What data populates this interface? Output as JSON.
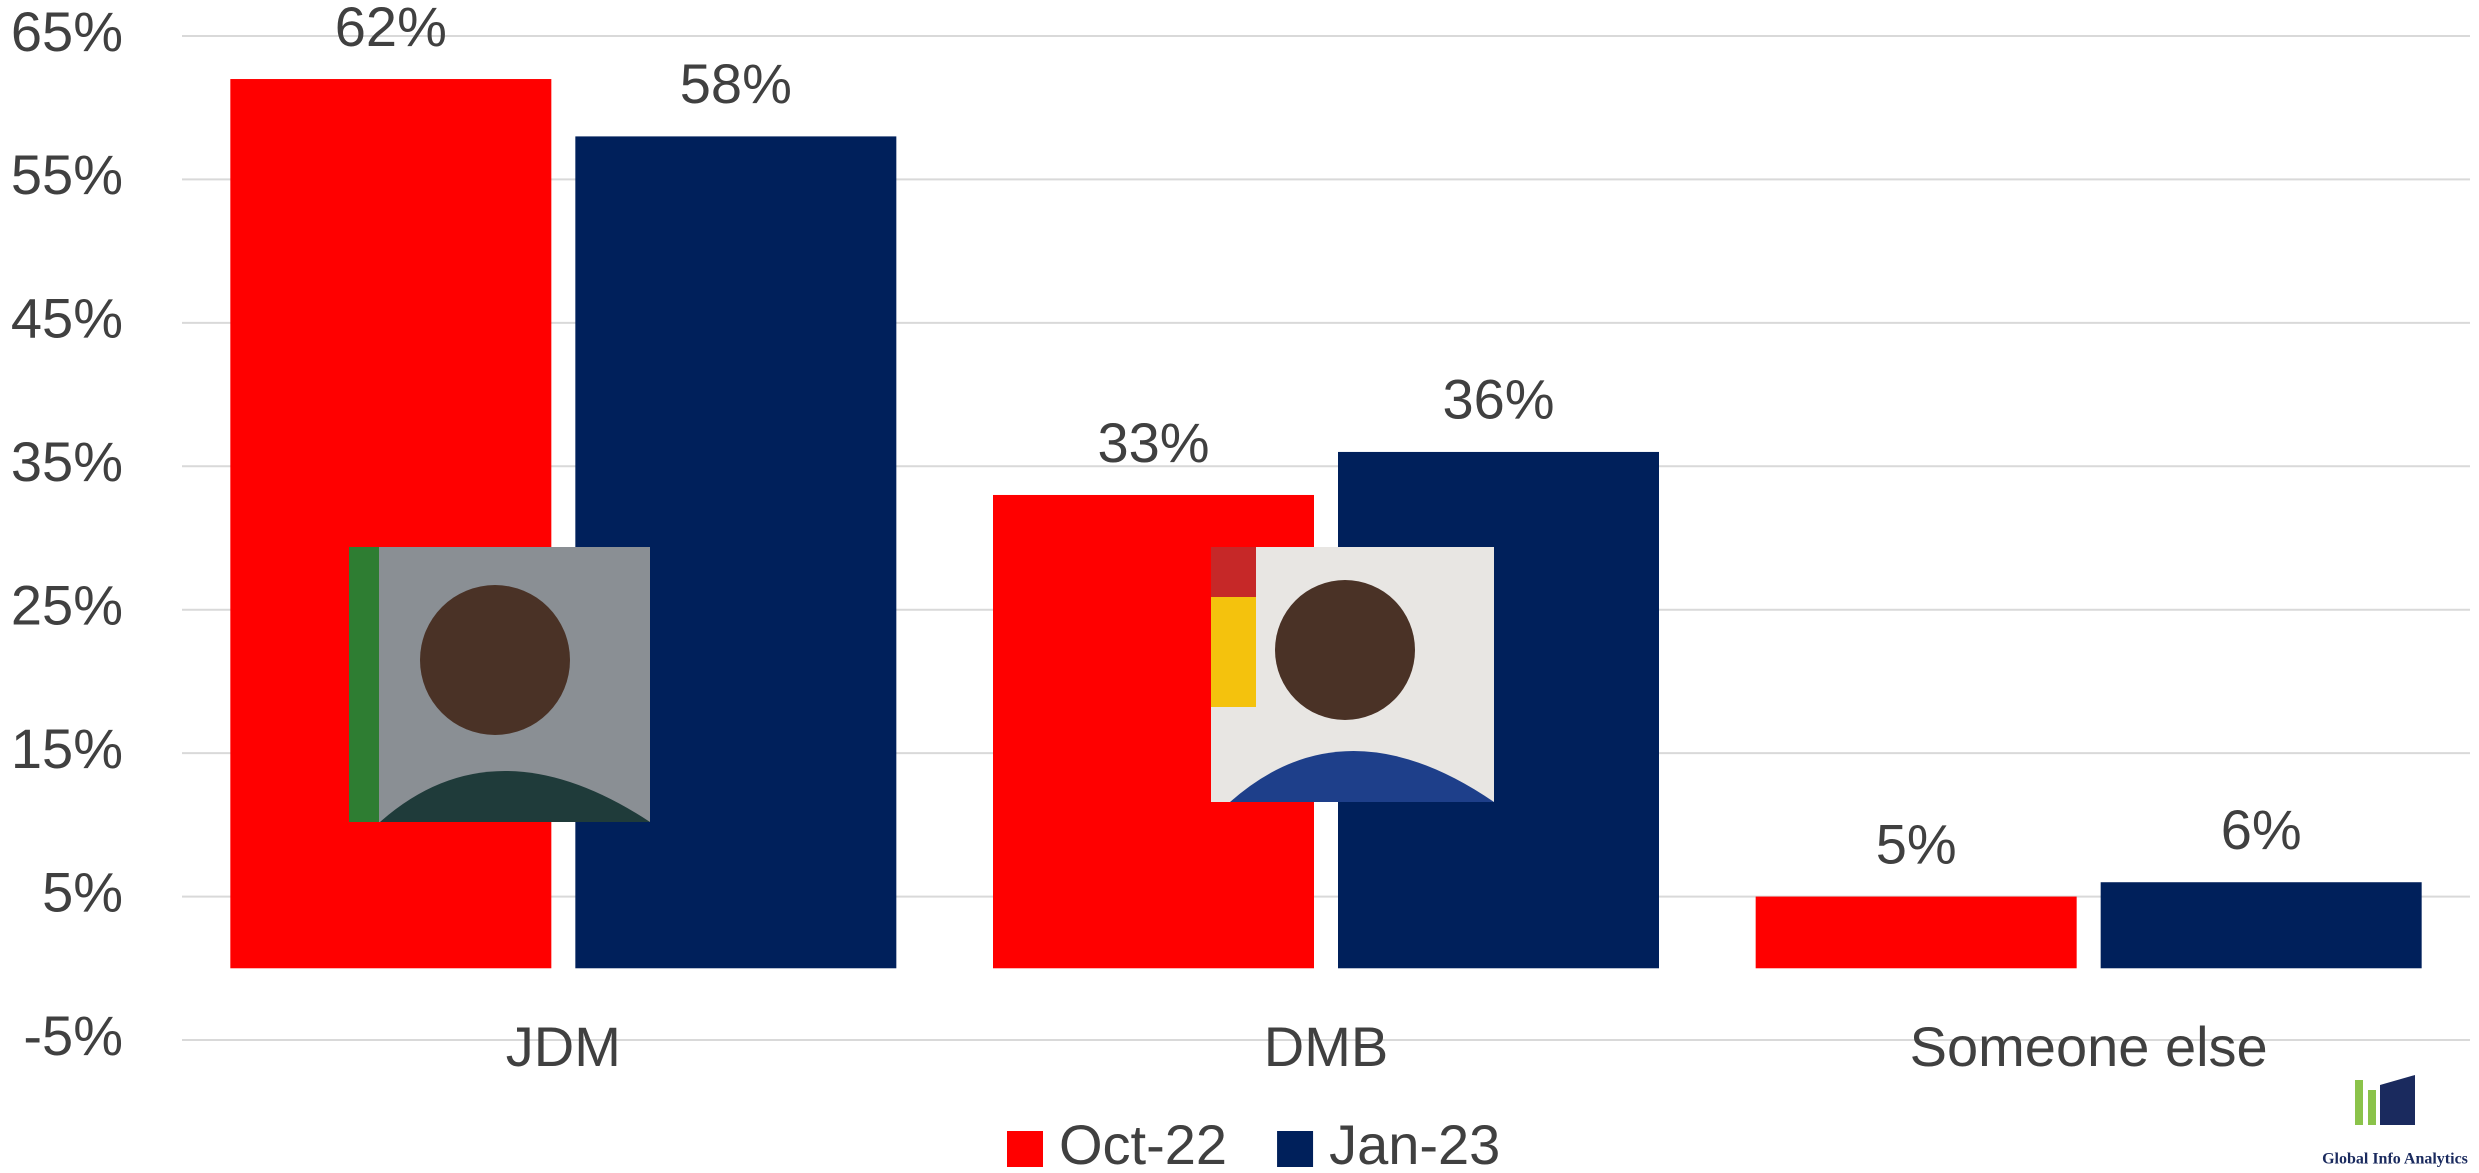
{
  "chart_data": {
    "type": "bar",
    "categories": [
      "JDM",
      "DMB",
      "Someone else"
    ],
    "series": [
      {
        "name": "Oct-22",
        "color": "#ff0000",
        "values": [
          62,
          33,
          5
        ],
        "value_labels": [
          "62%",
          "33%",
          "5%"
        ]
      },
      {
        "name": "Jan-23",
        "color": "#00205b",
        "values": [
          58,
          36,
          6
        ],
        "value_labels": [
          "58%",
          "36%",
          "6%"
        ]
      }
    ],
    "ylim": [
      -5,
      65
    ],
    "yticks": [
      {
        "value": -5,
        "label": "-5%"
      },
      {
        "value": 5,
        "label": "5%"
      },
      {
        "value": 15,
        "label": "15%"
      },
      {
        "value": 25,
        "label": "25%"
      },
      {
        "value": 35,
        "label": "35%"
      },
      {
        "value": 45,
        "label": "45%"
      },
      {
        "value": 55,
        "label": "55%"
      },
      {
        "value": 65,
        "label": "65%"
      }
    ],
    "grid": true,
    "legend": "bottom",
    "watermark": "Global Info Analytics"
  }
}
